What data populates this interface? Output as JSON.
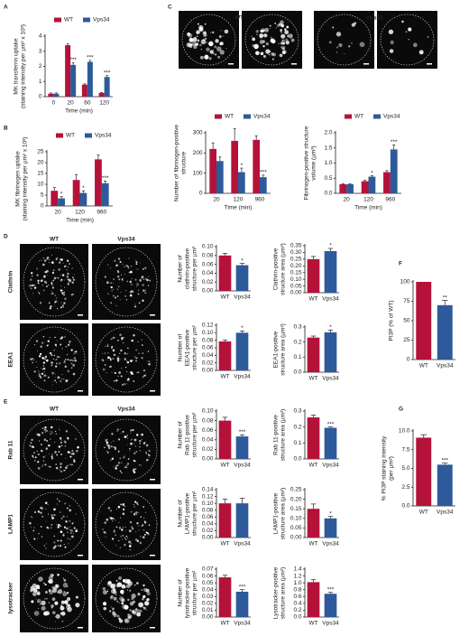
{
  "figure": {
    "panel_labels": [
      "A",
      "B",
      "C",
      "D",
      "E",
      "F",
      "G"
    ],
    "image_headers": [
      "WT",
      "Vps34",
      "WT",
      "Vps34",
      "WT",
      "Vps34"
    ],
    "row_labels": [
      "Clathrin",
      "EEA1",
      "Rab 11",
      "LAMP1",
      "lysotracker"
    ]
  },
  "chart_data": [
    {
      "type": "bar",
      "ylabel": [
        "MK transferrin uptake",
        "(staining intensity per µm² x 10³)"
      ],
      "xlabel": "Time (min)",
      "categories": [
        "0",
        "20",
        "60",
        "120"
      ],
      "legend": "top",
      "series": [
        {
          "name": "WT",
          "color": "#b5123a",
          "values": [
            0.2,
            3.4,
            0.8,
            0.25
          ],
          "errors": [
            0.05,
            0.1,
            0.05,
            0.03
          ],
          "stars": [
            null,
            null,
            null,
            null
          ]
        },
        {
          "name": "Vps34",
          "color": "#2d5a9a",
          "values": [
            0.2,
            2.1,
            2.3,
            1.3
          ],
          "errors": [
            0.05,
            0.15,
            0.1,
            0.1
          ],
          "stars": [
            null,
            "***",
            "***",
            "***"
          ]
        }
      ],
      "ylim": [
        0,
        4
      ],
      "yticks": [
        0,
        1,
        2,
        3,
        4
      ]
    },
    {
      "type": "bar",
      "ylabel": [
        "MK fibrinogen uptake",
        "(staining intensity per µm² x 10³)"
      ],
      "xlabel": "Time (min)",
      "categories": [
        "20",
        "120",
        "960"
      ],
      "legend": "top",
      "series": [
        {
          "name": "WT",
          "color": "#b5123a",
          "values": [
            7,
            12,
            21.5
          ],
          "errors": [
            1.5,
            2.5,
            2
          ],
          "stars": [
            null,
            null,
            null
          ]
        },
        {
          "name": "Vps34",
          "color": "#2d5a9a",
          "values": [
            3.5,
            6,
            10.5
          ],
          "errors": [
            0.8,
            1,
            1
          ],
          "stars": [
            "*",
            "*",
            "***"
          ]
        }
      ],
      "ylim": [
        0,
        25
      ],
      "yticks": [
        0,
        5,
        10,
        15,
        20,
        25
      ]
    },
    {
      "type": "bar",
      "ylabel": [
        "Number of fibrinogen-positive",
        "structure"
      ],
      "xlabel": "Time (min)",
      "categories": [
        "20",
        "120",
        "960"
      ],
      "legend": "top",
      "series": [
        {
          "name": "WT",
          "color": "#b5123a",
          "values": [
            220,
            260,
            265
          ],
          "errors": [
            30,
            60,
            20
          ],
          "stars": [
            null,
            null,
            null
          ]
        },
        {
          "name": "Vps34",
          "color": "#2d5a9a",
          "values": [
            160,
            105,
            80
          ],
          "errors": [
            20,
            20,
            10
          ],
          "stars": [
            null,
            "*",
            "***"
          ]
        }
      ],
      "ylim": [
        0,
        300
      ],
      "yticks": [
        0,
        100,
        200,
        300
      ]
    },
    {
      "type": "bar",
      "ylabel": [
        "Fibrinogen-positive structure",
        "volume (µm³)"
      ],
      "xlabel": "Time (min)",
      "categories": [
        "20",
        "120",
        "960"
      ],
      "legend": "top",
      "series": [
        {
          "name": "WT",
          "color": "#b5123a",
          "values": [
            0.3,
            0.4,
            0.7
          ],
          "errors": [
            0.02,
            0.03,
            0.05
          ],
          "stars": [
            null,
            null,
            null
          ]
        },
        {
          "name": "Vps34",
          "color": "#2d5a9a",
          "values": [
            0.3,
            0.55,
            1.45
          ],
          "errors": [
            0.02,
            0.03,
            0.15
          ],
          "stars": [
            null,
            "*",
            "***"
          ]
        }
      ],
      "ylim": [
        0,
        2
      ],
      "yticks": [
        {
          "value": 0,
          "label": "0.0"
        },
        0.5,
        {
          "value": 1,
          "label": "1.0"
        },
        1.5,
        {
          "value": 2,
          "label": "2.0"
        }
      ]
    },
    {
      "type": "bar",
      "ylabel": [
        "Number of",
        "clathrin-positive",
        "structure per µm²"
      ],
      "categories": [
        "WT",
        "Vps34"
      ],
      "colors": [
        "#b5123a",
        "#2d5a9a"
      ],
      "values": [
        0.08,
        0.058
      ],
      "errors": [
        0.005,
        0.004
      ],
      "stars": [
        null,
        "*"
      ],
      "ylim": [
        0,
        0.1
      ],
      "yticks": [
        {
          "value": 0,
          "label": "0.00"
        },
        0.02,
        0.04,
        0.06,
        0.08,
        {
          "value": 0.1,
          "label": "0.10"
        }
      ]
    },
    {
      "type": "bar",
      "ylabel": [
        "Clathrin-positive",
        "structure area (µm²)"
      ],
      "categories": [
        "WT",
        "Vps34"
      ],
      "colors": [
        "#b5123a",
        "#2d5a9a"
      ],
      "values": [
        0.25,
        0.31
      ],
      "errors": [
        0.02,
        0.02
      ],
      "stars": [
        null,
        "*"
      ],
      "ylim": [
        0,
        0.35
      ],
      "yticks": [
        {
          "value": 0,
          "label": "0.00"
        },
        0.05,
        {
          "value": 0.1,
          "label": "0.10"
        },
        0.15,
        {
          "value": 0.2,
          "label": "0.20"
        },
        0.25,
        {
          "value": 0.3,
          "label": "0.30"
        },
        0.35
      ]
    },
    {
      "type": "bar",
      "ylabel": [
        "Number of",
        "EEA1-positive",
        "structure per µm²"
      ],
      "categories": [
        "WT",
        "Vps34"
      ],
      "colors": [
        "#b5123a",
        "#2d5a9a"
      ],
      "values": [
        0.077,
        0.1
      ],
      "errors": [
        0.004,
        0.005
      ],
      "stars": [
        null,
        "*"
      ],
      "ylim": [
        0,
        0.12
      ],
      "yticks": [
        {
          "value": 0,
          "label": "0.00"
        },
        0.02,
        0.04,
        0.06,
        0.08,
        {
          "value": 0.1,
          "label": "0.10"
        },
        0.12
      ]
    },
    {
      "type": "bar",
      "ylabel": [
        "EEA1-positive",
        "structure area (µm²)"
      ],
      "categories": [
        "WT",
        "Vps34"
      ],
      "colors": [
        "#b5123a",
        "#2d5a9a"
      ],
      "values": [
        0.23,
        0.265
      ],
      "errors": [
        0.01,
        0.015
      ],
      "stars": [
        null,
        "*"
      ],
      "ylim": [
        0,
        0.3
      ],
      "yticks": [
        {
          "value": 0,
          "label": "0.0"
        },
        0.1,
        0.2,
        0.3
      ]
    },
    {
      "type": "bar",
      "ylabel": [
        "Number of",
        "Rab 11-positive",
        "structure per µm²"
      ],
      "categories": [
        "WT",
        "Vps34"
      ],
      "colors": [
        "#b5123a",
        "#2d5a9a"
      ],
      "values": [
        0.08,
        0.047
      ],
      "errors": [
        0.007,
        0.003
      ],
      "stars": [
        null,
        "***"
      ],
      "ylim": [
        0,
        0.1
      ],
      "yticks": [
        {
          "value": 0,
          "label": "0.00"
        },
        0.02,
        0.04,
        0.06,
        0.08,
        {
          "value": 0.1,
          "label": "0.10"
        }
      ]
    },
    {
      "type": "bar",
      "ylabel": [
        "Rab 11-positive",
        "structure area (µm²)"
      ],
      "categories": [
        "WT",
        "Vps34"
      ],
      "colors": [
        "#b5123a",
        "#2d5a9a"
      ],
      "values": [
        0.26,
        0.195
      ],
      "errors": [
        0.015,
        0.005
      ],
      "stars": [
        null,
        "***"
      ],
      "ylim": [
        0,
        0.3
      ],
      "yticks": [
        {
          "value": 0,
          "label": "0.0"
        },
        0.1,
        0.2,
        0.3
      ]
    },
    {
      "type": "bar",
      "ylabel": [
        "Number of",
        "LAMP1-positive",
        "structure per µm²"
      ],
      "categories": [
        "WT",
        "Vps34"
      ],
      "colors": [
        "#b5123a",
        "#2d5a9a"
      ],
      "values": [
        0.1,
        0.1
      ],
      "errors": [
        0.012,
        0.015
      ],
      "stars": [
        null,
        null
      ],
      "ylim": [
        0,
        0.14
      ],
      "yticks": [
        {
          "value": 0,
          "label": "0.00"
        },
        0.02,
        0.04,
        0.06,
        0.08,
        {
          "value": 0.1,
          "label": "0.10"
        },
        0.12,
        0.14
      ]
    },
    {
      "type": "bar",
      "ylabel": [
        "LAMP1-positive",
        "structure area (µm²)"
      ],
      "categories": [
        "WT",
        "Vps34"
      ],
      "colors": [
        "#b5123a",
        "#2d5a9a"
      ],
      "values": [
        0.15,
        0.1
      ],
      "errors": [
        0.025,
        0.01
      ],
      "stars": [
        null,
        "*"
      ],
      "ylim": [
        0,
        0.25
      ],
      "yticks": [
        {
          "value": 0,
          "label": "0.00"
        },
        0.05,
        {
          "value": 0.1,
          "label": "0.10"
        },
        0.15,
        {
          "value": 0.2,
          "label": "0.20"
        },
        0.25
      ]
    },
    {
      "type": "bar",
      "ylabel": [
        "Number of",
        "lysotracker-positive",
        "structure per µm²"
      ],
      "categories": [
        "WT",
        "Vps34"
      ],
      "colors": [
        "#b5123a",
        "#2d5a9a"
      ],
      "values": [
        0.058,
        0.037
      ],
      "errors": [
        0.003,
        0.003
      ],
      "stars": [
        null,
        "***"
      ],
      "ylim": [
        0,
        0.07
      ],
      "yticks": [
        {
          "value": 0,
          "label": "0.00"
        },
        0.01,
        0.02,
        0.03,
        0.04,
        0.05,
        0.06,
        0.07
      ]
    },
    {
      "type": "bar",
      "ylabel": [
        "Lysotracker-positive",
        "structure area (µm²)"
      ],
      "categories": [
        "WT",
        "Vps34"
      ],
      "colors": [
        "#b5123a",
        "#2d5a9a"
      ],
      "values": [
        1.02,
        0.68
      ],
      "errors": [
        0.07,
        0.04
      ],
      "stars": [
        null,
        "***"
      ],
      "ylim": [
        0,
        1.4
      ],
      "yticks": [
        {
          "value": 0,
          "label": "0.0"
        },
        0.2,
        0.4,
        0.6,
        0.8,
        {
          "value": 1,
          "label": "1.0"
        },
        1.2,
        1.4
      ]
    },
    {
      "type": "bar",
      "ylabel": [
        "PI3P (% of WT)"
      ],
      "categories": [
        "WT",
        "Vps34"
      ],
      "colors": [
        "#b5123a",
        "#2d5a9a"
      ],
      "values": [
        100,
        70
      ],
      "errors": [
        null,
        6
      ],
      "stars": [
        null,
        "**"
      ],
      "ylim": [
        0,
        100
      ],
      "yticks": [
        0,
        25,
        50,
        75,
        100
      ]
    },
    {
      "type": "bar",
      "ylabel": [
        "% PI3P staining intensity",
        "(per µm²)"
      ],
      "categories": [
        "WT",
        "Vps34"
      ],
      "colors": [
        "#b5123a",
        "#2d5a9a"
      ],
      "values": [
        9.1,
        5.5
      ],
      "errors": [
        0.4,
        0.2
      ],
      "stars": [
        null,
        "***"
      ],
      "ylim": [
        0,
        10
      ],
      "yticks": [
        {
          "value": 0,
          "label": "0.0"
        },
        2.5,
        {
          "value": 5,
          "label": "5.0"
        },
        7.5,
        {
          "value": 10,
          "label": "10.0"
        }
      ]
    }
  ]
}
